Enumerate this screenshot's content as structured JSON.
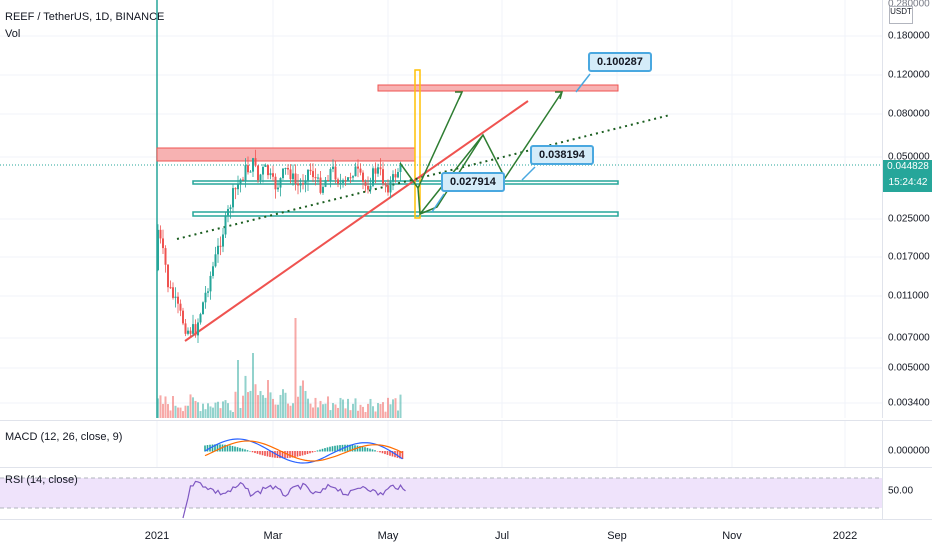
{
  "header": {
    "title": "REEF / TetherUS, 1D, BINANCE",
    "volume_label": "Vol"
  },
  "price_axis": {
    "currency": "USDT",
    "top_tick": "0.280000",
    "ticks": [
      "0.180000",
      "0.120000",
      "0.080000",
      "0.050000",
      "0.025000",
      "0.017000",
      "0.011000",
      "0.007000",
      "0.005000",
      "0.003400"
    ],
    "last_price": "0.044828",
    "countdown": "15:24:42"
  },
  "annotations": {
    "target_high": "0.100287",
    "mid_level": "0.038194",
    "low_level": "0.027914"
  },
  "macd": {
    "label": "MACD (12, 26, close, 9)",
    "tick": "0.000000"
  },
  "rsi": {
    "label": "RSI (14, close)",
    "tick": "50.00"
  },
  "time_axis": {
    "ticks": [
      "2021",
      "Mar",
      "May",
      "Jul",
      "Sep",
      "Nov",
      "2022"
    ]
  },
  "colors": {
    "up": "#26a69a",
    "down": "#ef5350",
    "resistance_zone": "#f7b2b2",
    "support_line": "#26a69a",
    "trend_line": "#ef5350",
    "projection": "#2e7d32",
    "callout_bg": "#d4ecf9",
    "rsi_band": "#efe3fb"
  }
}
